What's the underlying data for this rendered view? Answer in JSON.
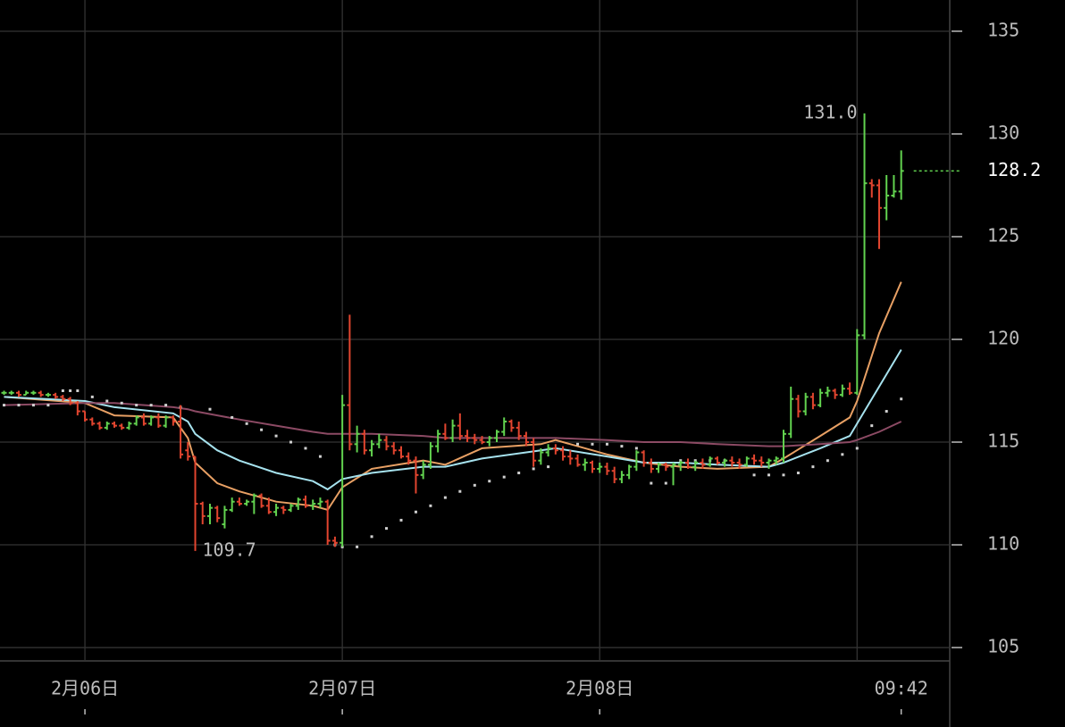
{
  "chart_data": {
    "type": "ohlc",
    "xlim": [
      -0.55,
      128.6
    ],
    "ylim": [
      104.35,
      136.52
    ],
    "yticks": [
      105,
      110,
      115,
      120,
      125,
      130,
      135
    ],
    "xticks": [
      {
        "value": 11,
        "label": "2月06日"
      },
      {
        "value": 46,
        "label": "2月07日"
      },
      {
        "value": 81,
        "label": "2月08日"
      },
      {
        "value": 122,
        "label": "09:42"
      }
    ],
    "xgrid": [
      11,
      46,
      81,
      116
    ],
    "grid": true,
    "up_color": "#62d24f",
    "down_color": "#e2452f",
    "ohlc": [
      [
        117.4,
        117.5,
        117.3,
        117.4
      ],
      [
        117.4,
        117.5,
        117.3,
        117.4
      ],
      [
        117.4,
        117.5,
        117.2,
        117.3
      ],
      [
        117.3,
        117.5,
        117.3,
        117.4
      ],
      [
        117.4,
        117.5,
        117.3,
        117.4
      ],
      [
        117.4,
        117.5,
        117.2,
        117.3
      ],
      [
        117.3,
        117.4,
        117.2,
        117.3
      ],
      [
        117.3,
        117.4,
        117.1,
        117.2
      ],
      [
        117.2,
        117.3,
        117.0,
        117.1
      ],
      [
        117.1,
        117.2,
        116.8,
        116.9
      ],
      [
        116.9,
        117.0,
        116.3,
        116.5
      ],
      [
        116.5,
        116.5,
        116.0,
        116.1
      ],
      [
        116.1,
        116.2,
        115.8,
        115.9
      ],
      [
        115.9,
        116.0,
        115.6,
        115.7
      ],
      [
        115.7,
        116.0,
        115.6,
        115.9
      ],
      [
        115.9,
        116.0,
        115.7,
        115.8
      ],
      [
        115.8,
        115.9,
        115.6,
        115.7
      ],
      [
        115.7,
        116.0,
        115.6,
        115.9
      ],
      [
        115.9,
        116.3,
        115.8,
        116.2
      ],
      [
        116.2,
        116.4,
        115.8,
        115.9
      ],
      [
        115.9,
        116.3,
        115.8,
        116.2
      ],
      [
        116.2,
        116.4,
        115.7,
        115.8
      ],
      [
        115.8,
        116.3,
        115.7,
        116.2
      ],
      [
        116.2,
        116.3,
        115.8,
        116.0
      ],
      [
        116.0,
        116.8,
        114.2,
        114.4
      ],
      [
        114.6,
        115.0,
        114.1,
        114.3
      ],
      [
        114.3,
        114.3,
        109.7,
        112.0
      ],
      [
        112.0,
        112.1,
        111.0,
        111.4
      ],
      [
        111.4,
        112.0,
        111.0,
        111.8
      ],
      [
        111.8,
        111.9,
        111.1,
        111.3
      ],
      [
        111.0,
        111.9,
        110.8,
        111.7
      ],
      [
        111.7,
        112.3,
        111.6,
        112.1
      ],
      [
        112.1,
        112.3,
        111.9,
        112.0
      ],
      [
        112.0,
        112.2,
        111.9,
        112.1
      ],
      [
        112.1,
        112.5,
        111.5,
        112.4
      ],
      [
        112.4,
        112.5,
        111.8,
        111.9
      ],
      [
        111.9,
        112.3,
        111.5,
        111.6
      ],
      [
        111.6,
        112.0,
        111.4,
        111.8
      ],
      [
        111.8,
        111.9,
        111.5,
        111.7
      ],
      [
        111.7,
        112.0,
        111.6,
        111.9
      ],
      [
        111.9,
        112.3,
        111.7,
        112.2
      ],
      [
        112.2,
        112.4,
        111.8,
        111.9
      ],
      [
        111.9,
        112.2,
        111.7,
        112.0
      ],
      [
        112.0,
        112.3,
        111.8,
        112.1
      ],
      [
        112.1,
        112.2,
        110.0,
        110.2
      ],
      [
        110.2,
        110.4,
        109.9,
        110.1
      ],
      [
        110.1,
        117.3,
        109.9,
        116.8
      ],
      [
        116.8,
        121.2,
        114.6,
        114.9
      ],
      [
        114.9,
        115.8,
        114.5,
        115.4
      ],
      [
        115.4,
        115.6,
        114.4,
        114.6
      ],
      [
        114.6,
        115.1,
        114.3,
        114.9
      ],
      [
        114.9,
        115.4,
        114.7,
        115.1
      ],
      [
        115.1,
        115.3,
        114.6,
        114.8
      ],
      [
        114.8,
        115.0,
        114.4,
        114.6
      ],
      [
        114.6,
        114.8,
        114.2,
        114.3
      ],
      [
        114.3,
        114.5,
        113.9,
        114.1
      ],
      [
        114.1,
        114.3,
        112.5,
        113.4
      ],
      [
        113.4,
        114.1,
        113.2,
        113.9
      ],
      [
        113.9,
        115.0,
        113.7,
        114.8
      ],
      [
        114.8,
        115.6,
        114.5,
        115.4
      ],
      [
        115.4,
        115.9,
        115.1,
        115.2
      ],
      [
        115.2,
        116.1,
        115.0,
        115.8
      ],
      [
        115.8,
        116.4,
        115.1,
        115.3
      ],
      [
        115.3,
        115.6,
        115.0,
        115.2
      ],
      [
        115.2,
        115.4,
        114.9,
        115.1
      ],
      [
        115.1,
        115.3,
        114.9,
        115.0
      ],
      [
        115.0,
        115.3,
        114.8,
        115.2
      ],
      [
        115.2,
        115.6,
        115.0,
        115.5
      ],
      [
        115.5,
        116.2,
        115.3,
        116.0
      ],
      [
        116.0,
        116.1,
        115.5,
        115.7
      ],
      [
        115.7,
        116.0,
        115.1,
        115.3
      ],
      [
        115.3,
        115.5,
        114.8,
        115.0
      ],
      [
        115.0,
        115.2,
        113.8,
        114.1
      ],
      [
        114.1,
        114.7,
        113.9,
        114.5
      ],
      [
        114.5,
        114.9,
        114.3,
        114.7
      ],
      [
        114.7,
        114.9,
        114.4,
        114.6
      ],
      [
        114.6,
        114.8,
        114.1,
        114.3
      ],
      [
        114.3,
        114.6,
        113.9,
        114.2
      ],
      [
        114.2,
        114.4,
        113.8,
        113.9
      ],
      [
        113.9,
        114.2,
        113.6,
        114.0
      ],
      [
        114.0,
        114.1,
        113.5,
        113.7
      ],
      [
        113.7,
        114.0,
        113.5,
        113.8
      ],
      [
        113.8,
        114.0,
        113.4,
        113.6
      ],
      [
        113.6,
        113.8,
        113.0,
        113.2
      ],
      [
        113.2,
        113.6,
        113.0,
        113.4
      ],
      [
        113.4,
        113.9,
        113.2,
        113.8
      ],
      [
        113.8,
        114.6,
        113.6,
        114.5
      ],
      [
        114.5,
        114.6,
        113.8,
        114.0
      ],
      [
        114.0,
        114.2,
        113.5,
        113.7
      ],
      [
        113.7,
        114.0,
        113.5,
        113.9
      ],
      [
        113.9,
        114.0,
        113.6,
        113.8
      ],
      [
        113.8,
        114.0,
        112.9,
        113.9
      ],
      [
        113.9,
        114.1,
        113.6,
        114.0
      ],
      [
        114.0,
        114.2,
        113.7,
        113.8
      ],
      [
        113.8,
        114.1,
        113.6,
        114.0
      ],
      [
        114.0,
        114.2,
        113.7,
        113.9
      ],
      [
        113.9,
        114.3,
        113.8,
        114.2
      ],
      [
        114.2,
        114.3,
        113.9,
        114.0
      ],
      [
        114.0,
        114.2,
        113.8,
        114.1
      ],
      [
        114.1,
        114.3,
        113.8,
        114.0
      ],
      [
        114.0,
        114.2,
        113.7,
        113.9
      ],
      [
        113.9,
        114.3,
        113.8,
        114.2
      ],
      [
        114.2,
        114.4,
        113.9,
        114.1
      ],
      [
        114.1,
        114.3,
        113.8,
        114.0
      ],
      [
        114.0,
        114.2,
        113.7,
        114.1
      ],
      [
        114.1,
        114.3,
        113.9,
        114.2
      ],
      [
        114.2,
        115.6,
        114.0,
        115.4
      ],
      [
        115.4,
        117.7,
        115.2,
        117.1
      ],
      [
        117.1,
        117.3,
        116.2,
        116.5
      ],
      [
        116.5,
        117.4,
        116.3,
        117.2
      ],
      [
        117.2,
        117.4,
        116.6,
        116.8
      ],
      [
        116.8,
        117.6,
        116.7,
        117.4
      ],
      [
        117.4,
        117.7,
        117.2,
        117.5
      ],
      [
        117.5,
        117.6,
        117.1,
        117.3
      ],
      [
        117.3,
        117.8,
        117.2,
        117.6
      ],
      [
        117.6,
        117.9,
        117.3,
        117.4
      ],
      [
        117.4,
        120.5,
        117.3,
        120.2
      ],
      [
        120.2,
        131.0,
        120.0,
        127.6
      ],
      [
        127.6,
        127.8,
        126.9,
        127.5
      ],
      [
        127.5,
        127.8,
        124.4,
        126.4
      ],
      [
        126.4,
        128.0,
        125.8,
        127.0
      ],
      [
        127.0,
        128.0,
        126.9,
        127.2
      ],
      [
        127.2,
        129.2,
        126.8,
        128.2
      ]
    ],
    "lines": [
      {
        "color": "#e8a064",
        "x": [
          0,
          11,
          15,
          23,
          25,
          26,
          29,
          32,
          37,
          42,
          44,
          46,
          50,
          57,
          60,
          65,
          73,
          75,
          82,
          87,
          92,
          97,
          104,
          106,
          111,
          115,
          116,
          119,
          122
        ],
        "values": [
          117.2,
          116.9,
          116.3,
          116.2,
          115.2,
          114.0,
          113.0,
          112.6,
          112.1,
          111.9,
          111.7,
          112.8,
          113.7,
          114.1,
          113.9,
          114.7,
          114.9,
          115.1,
          114.4,
          114.0,
          113.8,
          113.7,
          113.8,
          114.2,
          115.3,
          116.2,
          117.0,
          120.3,
          122.8
        ]
      },
      {
        "color": "#a6e2ee",
        "x": [
          0,
          11,
          15,
          23,
          25,
          26,
          29,
          32,
          37,
          42,
          44,
          46,
          50,
          57,
          60,
          65,
          73,
          75,
          82,
          87,
          92,
          97,
          104,
          106,
          111,
          115,
          116,
          119,
          122
        ],
        "values": [
          117.2,
          117.0,
          116.7,
          116.4,
          116.0,
          115.4,
          114.6,
          114.1,
          113.5,
          113.1,
          112.7,
          113.2,
          113.5,
          113.8,
          113.8,
          114.2,
          114.6,
          114.7,
          114.3,
          114.0,
          114.0,
          113.9,
          113.8,
          114.0,
          114.7,
          115.3,
          115.9,
          117.7,
          119.5
        ]
      },
      {
        "color": "#8c4a64",
        "x": [
          0,
          11,
          15,
          23,
          25,
          26,
          29,
          32,
          37,
          42,
          44,
          46,
          50,
          57,
          60,
          65,
          73,
          75,
          82,
          87,
          92,
          97,
          104,
          106,
          111,
          115,
          116,
          119,
          122
        ],
        "values": [
          116.8,
          116.9,
          116.9,
          116.7,
          116.6,
          116.5,
          116.3,
          116.1,
          115.8,
          115.5,
          115.4,
          115.4,
          115.4,
          115.3,
          115.2,
          115.2,
          115.2,
          115.2,
          115.1,
          115.0,
          115.0,
          114.9,
          114.8,
          114.8,
          114.9,
          115.0,
          115.1,
          115.5,
          116.0
        ]
      }
    ],
    "dots": {
      "color": "#d0d0d0",
      "x": [
        0,
        2,
        4,
        6,
        8,
        9,
        10,
        12,
        14,
        16,
        18,
        20,
        22,
        24,
        28,
        31,
        33,
        35,
        37,
        39,
        41,
        43,
        45,
        46,
        48,
        50,
        52,
        54,
        56,
        58,
        60,
        62,
        64,
        66,
        68,
        70,
        72,
        74,
        78,
        80,
        82,
        84,
        86,
        88,
        90,
        92,
        94,
        96,
        98,
        102,
        104,
        106,
        108,
        110,
        112,
        114,
        116,
        118,
        120,
        122
      ],
      "values": [
        116.8,
        116.8,
        116.8,
        116.8,
        117.5,
        117.5,
        117.5,
        117.2,
        117.0,
        116.9,
        116.8,
        116.8,
        116.8,
        116.7,
        116.6,
        116.2,
        115.9,
        115.6,
        115.3,
        115.0,
        114.7,
        114.3,
        110.0,
        109.9,
        109.9,
        110.4,
        110.8,
        111.2,
        111.6,
        111.9,
        112.3,
        112.6,
        112.9,
        113.1,
        113.3,
        113.5,
        113.7,
        113.8,
        114.9,
        114.9,
        114.9,
        114.8,
        114.7,
        113.0,
        113.0,
        114.1,
        114.1,
        114.1,
        114.1,
        113.4,
        113.4,
        113.4,
        113.5,
        113.8,
        114.1,
        114.4,
        114.7,
        115.8,
        116.5,
        117.1
      ]
    },
    "annotations": [
      {
        "value": 131.0,
        "label": "131.0",
        "x": 117
      },
      {
        "value": 109.7,
        "label": "109.7",
        "x": 26
      }
    ],
    "last_price": 128.2
  }
}
